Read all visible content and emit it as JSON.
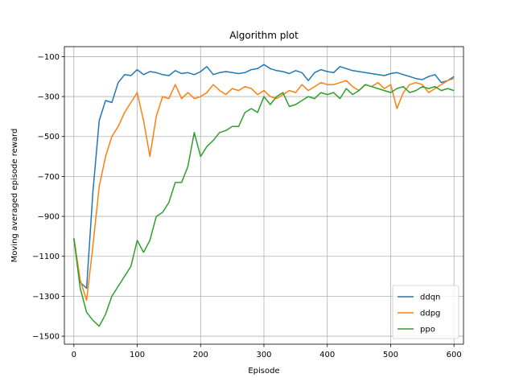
{
  "chart_data": {
    "type": "line",
    "title": "Algorithm plot",
    "xlabel": "Episode",
    "ylabel": "Moving averaged episode reward",
    "xlim": [
      -15,
      615
    ],
    "ylim": [
      -1540,
      -50
    ],
    "xticks": [
      0,
      100,
      200,
      300,
      400,
      500,
      600
    ],
    "yticks": [
      -1500,
      -1300,
      -1100,
      -900,
      -700,
      -500,
      -300,
      -100
    ],
    "grid": true,
    "legend": "bottom-right",
    "x": [
      0,
      10,
      20,
      30,
      40,
      50,
      60,
      70,
      80,
      90,
      100,
      110,
      120,
      130,
      140,
      150,
      160,
      170,
      180,
      190,
      200,
      210,
      220,
      230,
      240,
      250,
      260,
      270,
      280,
      290,
      300,
      310,
      320,
      330,
      340,
      350,
      360,
      370,
      380,
      390,
      400,
      410,
      420,
      430,
      440,
      450,
      460,
      470,
      480,
      490,
      500,
      510,
      520,
      530,
      540,
      550,
      560,
      570,
      580,
      590,
      600
    ],
    "series": [
      {
        "name": "ddqn",
        "color": "#1f77b4",
        "values": [
          -1010,
          -1230,
          -1260,
          -780,
          -420,
          -320,
          -330,
          -230,
          -190,
          -195,
          -165,
          -190,
          -175,
          -180,
          -190,
          -195,
          -170,
          -185,
          -180,
          -190,
          -175,
          -150,
          -190,
          -180,
          -175,
          -180,
          -185,
          -180,
          -165,
          -160,
          -140,
          -160,
          -170,
          -175,
          -185,
          -170,
          -180,
          -220,
          -180,
          -165,
          -175,
          -180,
          -150,
          -160,
          -170,
          -175,
          -180,
          -185,
          -190,
          -195,
          -185,
          -180,
          -190,
          -200,
          -210,
          -215,
          -200,
          -190,
          -230,
          -220,
          -200
        ]
      },
      {
        "name": "ddpg",
        "color": "#ff7f0e",
        "values": [
          -1010,
          -1220,
          -1320,
          -1050,
          -750,
          -600,
          -500,
          -450,
          -380,
          -330,
          -280,
          -420,
          -600,
          -400,
          -300,
          -310,
          -240,
          -310,
          -280,
          -310,
          -300,
          -280,
          -240,
          -270,
          -290,
          -260,
          -270,
          -250,
          -260,
          -290,
          -270,
          -300,
          -310,
          -290,
          -270,
          -280,
          -240,
          -270,
          -250,
          -230,
          -240,
          -240,
          -230,
          -220,
          -250,
          -270,
          -240,
          -250,
          -230,
          -260,
          -240,
          -360,
          -280,
          -240,
          -230,
          -240,
          -280,
          -260,
          -240,
          -220,
          -210
        ]
      },
      {
        "name": "ppo",
        "color": "#2ca02c",
        "values": [
          -1010,
          -1260,
          -1380,
          -1420,
          -1450,
          -1390,
          -1300,
          -1250,
          -1200,
          -1150,
          -1020,
          -1080,
          -1020,
          -900,
          -880,
          -830,
          -730,
          -730,
          -650,
          -480,
          -600,
          -550,
          -520,
          -480,
          -470,
          -450,
          -450,
          -380,
          -360,
          -380,
          -300,
          -340,
          -300,
          -280,
          -350,
          -340,
          -320,
          -300,
          -310,
          -280,
          -290,
          -280,
          -310,
          -260,
          -290,
          -270,
          -240,
          -250,
          -260,
          -270,
          -280,
          -260,
          -250,
          -280,
          -270,
          -250,
          -260,
          -250,
          -270,
          -260,
          -270
        ]
      }
    ]
  }
}
